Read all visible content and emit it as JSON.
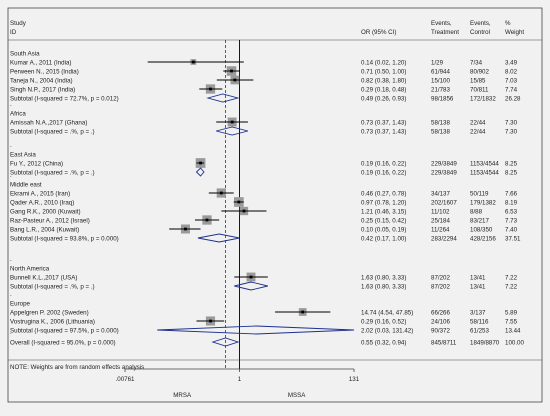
{
  "chart_data": {
    "type": "forest",
    "header": {
      "study": "Study",
      "id": "ID",
      "or": "OR (95% CI)",
      "events_treatment": [
        "Events,",
        "Treatment"
      ],
      "events_control": [
        "Events,",
        "Control"
      ],
      "weight": [
        "%",
        "Weight"
      ]
    },
    "x_axis": {
      "scale": "log",
      "reference_line": 1,
      "overall_estimate": 0.55,
      "tick_labels": [
        ".00761",
        "1",
        "131"
      ],
      "tick_values": [
        0.00761,
        1,
        131
      ],
      "left_label": "MRSA",
      "right_label": "MSSA"
    },
    "groups": [
      {
        "name": "South Asia",
        "studies": [
          {
            "label": "Kumar A., 2011 (India)",
            "or": 0.14,
            "ci": [
              0.02,
              1.2
            ],
            "or_text": "0.14 (0.02, 1.20)",
            "treatment": "1/29",
            "control": "7/34",
            "weight": "3.49"
          },
          {
            "label": "Perween N., 2015 (India)",
            "or": 0.71,
            "ci": [
              0.5,
              1.0
            ],
            "or_text": "0.71 (0.50, 1.00)",
            "treatment": "61/944",
            "control": "80/902",
            "weight": "8.02"
          },
          {
            "label": "Taneja N., 2004 (India)",
            "or": 0.82,
            "ci": [
              0.38,
              1.8
            ],
            "or_text": "0.82 (0.38, 1.80)",
            "treatment": "15/100",
            "control": "15/85",
            "weight": "7.03"
          },
          {
            "label": "Singh N.P., 2017 (India)",
            "or": 0.29,
            "ci": [
              0.18,
              0.48
            ],
            "or_text": "0.29 (0.18, 0.48)",
            "treatment": "21/783",
            "control": "70/811",
            "weight": "7.74"
          }
        ],
        "subtotal": {
          "label": "Subtotal  (I-squared = 72.7%, p = 0.012)",
          "or": 0.49,
          "ci": [
            0.26,
            0.93
          ],
          "or_text": "0.49 (0.26, 0.93)",
          "treatment": "98/1856",
          "control": "172/1832",
          "weight": "26.28"
        }
      },
      {
        "name": "Africa",
        "studies": [
          {
            "label": "Amissah N.A.,2017 (Ghana)",
            "or": 0.73,
            "ci": [
              0.37,
              1.43
            ],
            "or_text": "0.73 (0.37, 1.43)",
            "treatment": "58/138",
            "control": "22/44",
            "weight": "7.30"
          }
        ],
        "subtotal": {
          "label": "Subtotal  (I-squared = .%, p = .)",
          "or": 0.73,
          "ci": [
            0.37,
            1.43
          ],
          "or_text": "0.73 (0.37, 1.43)",
          "treatment": "58/138",
          "control": "22/44",
          "weight": "7.30"
        }
      },
      {
        "name": "East Asia",
        "studies": [
          {
            "label": "Fu Y., 2012 (China)",
            "or": 0.19,
            "ci": [
              0.16,
              0.22
            ],
            "or_text": "0.19 (0.16, 0.22)",
            "treatment": "229/3849",
            "control": "1153/4544",
            "weight": "8.25"
          }
        ],
        "subtotal": {
          "label": "Subtotal  (I-squared = .%, p = .)",
          "or": 0.19,
          "ci": [
            0.16,
            0.22
          ],
          "or_text": "0.19 (0.16, 0.22)",
          "treatment": "229/3849",
          "control": "1153/4544",
          "weight": "8.25"
        }
      },
      {
        "name": "Middle east",
        "studies": [
          {
            "label": "Ekrami A., 2015 (Iran)",
            "or": 0.46,
            "ci": [
              0.27,
              0.78
            ],
            "or_text": "0.46 (0.27, 0.78)",
            "treatment": "34/137",
            "control": "50/119",
            "weight": "7.66"
          },
          {
            "label": "Qader A.R., 2010 (Iraq)",
            "or": 0.97,
            "ci": [
              0.78,
              1.2
            ],
            "or_text": "0.97 (0.78, 1.20)",
            "treatment": "202/1607",
            "control": "179/1382",
            "weight": "8.19"
          },
          {
            "label": "Gang R.K., 2000 (Kuwait)",
            "or": 1.21,
            "ci": [
              0.46,
              3.15
            ],
            "or_text": "1.21 (0.46, 3.15)",
            "treatment": "11/102",
            "control": "8/88",
            "weight": "6.53"
          },
          {
            "label": "Raz-Pasteur A., 2012 (Israel)",
            "or": 0.25,
            "ci": [
              0.15,
              0.42
            ],
            "or_text": "0.25 (0.15, 0.42)",
            "treatment": "25/184",
            "control": "83/217",
            "weight": "7.73"
          },
          {
            "label": "Bang L.R., 2004 (Kuwait)",
            "or": 0.1,
            "ci": [
              0.05,
              0.19
            ],
            "or_text": "0.10 (0.05, 0.19)",
            "treatment": "11/264",
            "control": "108/350",
            "weight": "7.40"
          }
        ],
        "subtotal": {
          "label": "Subtotal  (I-squared = 93.8%, p = 0.000)",
          "or": 0.42,
          "ci": [
            0.17,
            1.0
          ],
          "or_text": "0.42 (0.17, 1.00)",
          "treatment": "283/2294",
          "control": "428/2156",
          "weight": "37.51"
        }
      },
      {
        "name": "North America",
        "studies": [
          {
            "label": "Bunnell K.L.,2017 (USA)",
            "or": 1.63,
            "ci": [
              0.8,
              3.33
            ],
            "or_text": "1.63 (0.80, 3.33)",
            "treatment": "87/202",
            "control": "13/41",
            "weight": "7.22"
          }
        ],
        "subtotal": {
          "label": "Subtotal  (I-squared = .%, p = .)",
          "or": 1.63,
          "ci": [
            0.8,
            3.33
          ],
          "or_text": "1.63 (0.80, 3.33)",
          "treatment": "87/202",
          "control": "13/41",
          "weight": "7.22"
        }
      },
      {
        "name": "Europe",
        "studies": [
          {
            "label": "Appelgren P. 2002 (Sweden)",
            "or": 14.74,
            "ci": [
              4.54,
              47.85
            ],
            "or_text": "14.74 (4.54, 47.85)",
            "treatment": "66/266",
            "control": "3/137",
            "weight": "5.89"
          },
          {
            "label": "Vostrugina K., 2006 (Lithuania)",
            "or": 0.29,
            "ci": [
              0.16,
              0.52
            ],
            "or_text": "0.29 (0.16, 0.52)",
            "treatment": "24/106",
            "control": "58/116",
            "weight": "7.55"
          }
        ],
        "subtotal": {
          "label": "Subtotal  (I-squared = 97.5%, p = 0.000)",
          "or": 2.02,
          "ci": [
            0.03,
            131.42
          ],
          "or_text": "2.02 (0.03, 131.42)",
          "treatment": "90/372",
          "control": "61/253",
          "weight": "13.44"
        }
      }
    ],
    "overall": {
      "label": "Overall  (I-squared = 95.0%, p = 0.000)",
      "or": 0.55,
      "ci": [
        0.32,
        0.94
      ],
      "or_text": "0.55 (0.32, 0.94)",
      "treatment": "845/8711",
      "control": "1849/8870",
      "weight": "100.00"
    },
    "note": "NOTE: Weights are from random effects analysis",
    "colors": {
      "background": "#f1f1f1",
      "diamond": "#1c2f8f",
      "ci_line": "#000000",
      "box": "#9a9a9a",
      "null_line": "#000000",
      "overall_line": "#b22222",
      "frame": "#444444"
    }
  }
}
